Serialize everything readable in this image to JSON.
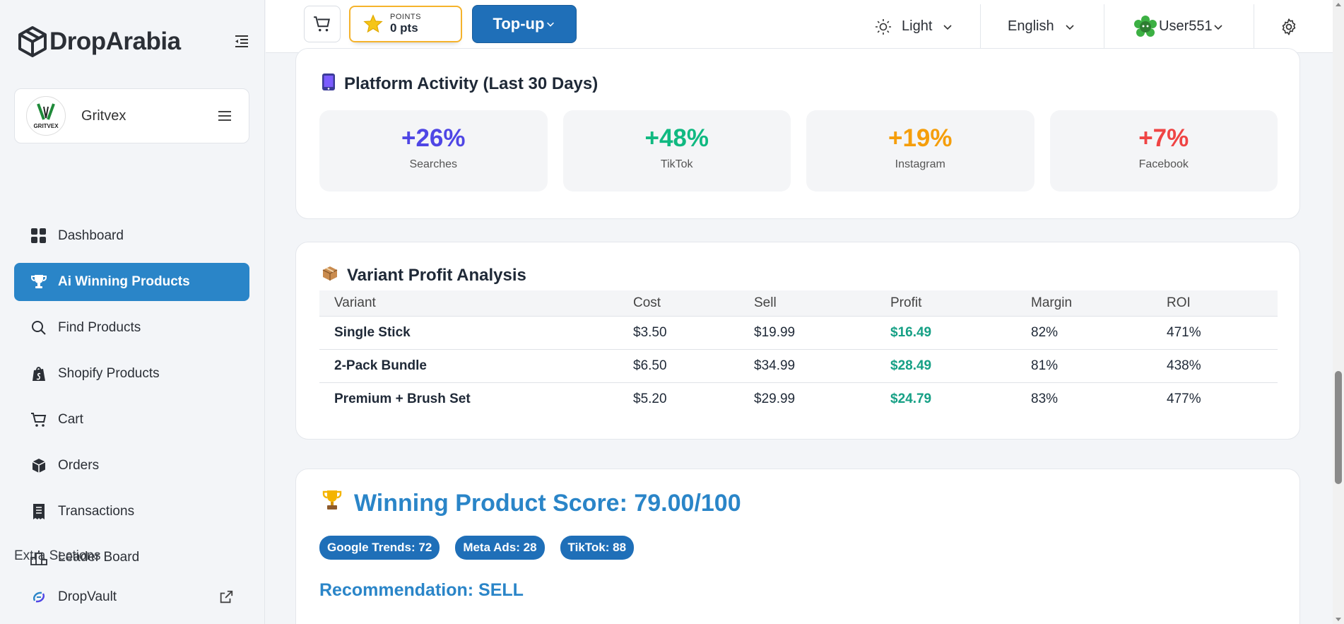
{
  "brand": {
    "logo_text": "DropArabia"
  },
  "store": {
    "name": "Gritvex",
    "avatar_text": "GRITVEX"
  },
  "nav": {
    "items": [
      {
        "label": "Dashboard",
        "icon": "grid-icon"
      },
      {
        "label": "Ai Winning Products",
        "icon": "trophy-icon",
        "active": true
      },
      {
        "label": "Find Products",
        "icon": "search-icon"
      },
      {
        "label": "Shopify Products",
        "icon": "shopify-bag-icon"
      },
      {
        "label": "Cart",
        "icon": "cart-icon"
      },
      {
        "label": "Orders",
        "icon": "box-icon"
      },
      {
        "label": "Transactions",
        "icon": "receipt-icon"
      },
      {
        "label": "Leader Board",
        "icon": "podium-icon"
      }
    ],
    "extra_title": "Extra Sections",
    "extra_items": [
      {
        "label": "DropVault",
        "icon": "dropvault-icon"
      }
    ]
  },
  "topbar": {
    "points_label": "POINTS",
    "points_value": "0 pts",
    "topup_label": "Top-up",
    "theme_label": "Light",
    "language_label": "English",
    "user_label": "User551"
  },
  "activity": {
    "title": "Platform Activity (Last 30 Days)",
    "stats": [
      {
        "value": "+26%",
        "label": "Searches",
        "color": "#4f46e5"
      },
      {
        "value": "+48%",
        "label": "TikTok",
        "color": "#10b981"
      },
      {
        "value": "+19%",
        "label": "Instagram",
        "color": "#f59e0b"
      },
      {
        "value": "+7%",
        "label": "Facebook",
        "color": "#ef4444"
      }
    ]
  },
  "variants": {
    "title": "Variant Profit Analysis",
    "columns": [
      "Variant",
      "Cost",
      "Sell",
      "Profit",
      "Margin",
      "ROI"
    ],
    "rows": [
      [
        "Single Stick",
        "$3.50",
        "$19.99",
        "$16.49",
        "82%",
        "471%"
      ],
      [
        "2-Pack Bundle",
        "$6.50",
        "$34.99",
        "$28.49",
        "81%",
        "438%"
      ],
      [
        "Premium + Brush Set",
        "$5.20",
        "$29.99",
        "$24.79",
        "83%",
        "477%"
      ]
    ]
  },
  "score": {
    "title": "Winning Product Score: 79.00/100",
    "pills": [
      "Google Trends: 72",
      "Meta Ads: 28",
      "TikTok: 88"
    ],
    "recommendation": "Recommendation: SELL"
  },
  "colors": {
    "accent": "#2a85c8",
    "primary_button": "#1f6fb8",
    "points_border": "#f5b32c",
    "profit": "#16a085"
  }
}
